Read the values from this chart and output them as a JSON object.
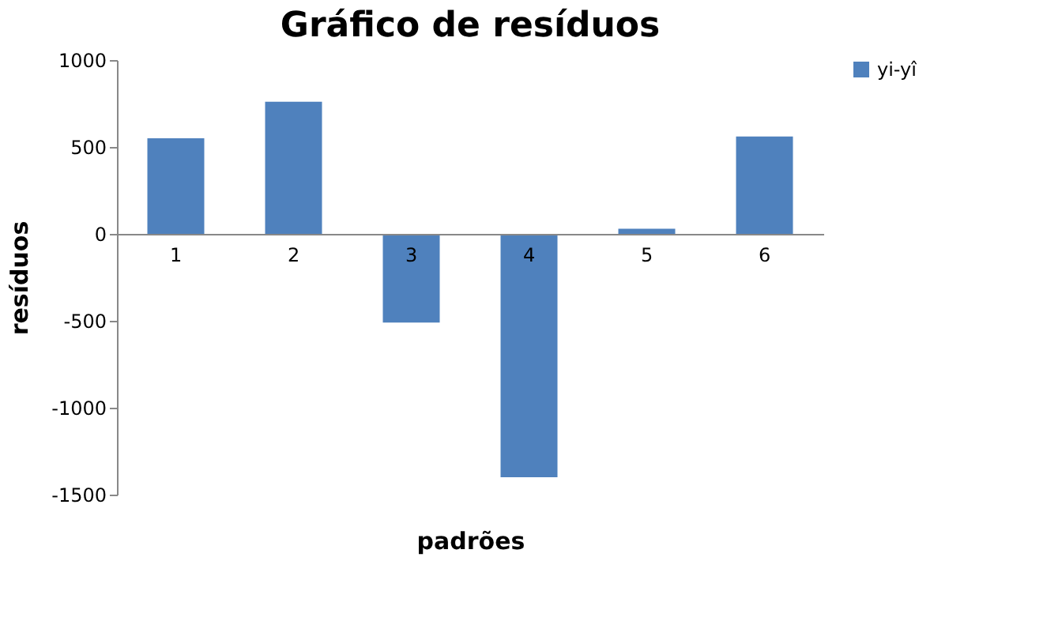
{
  "chart_data": {
    "type": "bar",
    "title": "Gráfico de resíduos",
    "xlabel": "padrões",
    "ylabel": "resíduos",
    "categories": [
      "1",
      "2",
      "3",
      "4",
      "5",
      "6"
    ],
    "series": [
      {
        "name": "yi-yî",
        "color": "#4f81bd",
        "values": [
          550,
          760,
          -510,
          -1400,
          30,
          560
        ]
      }
    ],
    "ylim": [
      -1500,
      1000
    ],
    "yticks": [
      -1500,
      -1000,
      -500,
      0,
      500,
      1000
    ],
    "grid": false,
    "legend": "right"
  }
}
